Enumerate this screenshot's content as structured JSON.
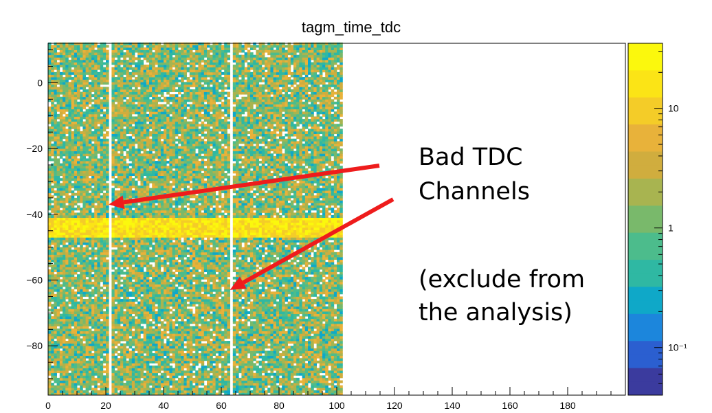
{
  "chart_data": {
    "type": "heatmap",
    "title": "tagm_time_tdc",
    "xlabel": "",
    "ylabel": "",
    "x_range": [
      0,
      200
    ],
    "y_range": [
      -95,
      12
    ],
    "x_ticks": [
      "0",
      "20",
      "40",
      "60",
      "80",
      "100",
      "120",
      "140",
      "160",
      "180"
    ],
    "x_tick_values": [
      0,
      20,
      40,
      60,
      80,
      100,
      120,
      140,
      160,
      180
    ],
    "y_ticks": [
      "0",
      "−20",
      "−40",
      "−60",
      "−80"
    ],
    "y_tick_values": [
      0,
      -20,
      -40,
      -60,
      -80
    ],
    "z_scale": "log",
    "z_range": [
      0.04,
      35
    ],
    "z_ticks": [
      "10",
      "1",
      "10⁻¹"
    ],
    "z_tick_values": [
      10,
      1,
      0.1
    ],
    "filled_x_range": [
      0,
      102
    ],
    "empty_channels": [
      21,
      63
    ],
    "peak_band_y": [
      -47,
      -41
    ],
    "annotations": [
      {
        "lines": [
          "Bad TDC",
          "Channels"
        ],
        "points_to": [
          {
            "x": 21,
            "y": -37
          },
          {
            "x": 63,
            "y": -63
          }
        ]
      },
      {
        "lines": [
          "(exclude from",
          "the analysis)"
        ]
      }
    ],
    "colors": {
      "arrow": "#ee1c1c",
      "palette": [
        "#3b3b9e",
        "#2b5fd0",
        "#1c86dc",
        "#0fa8c8",
        "#2fb8a3",
        "#4cbc8c",
        "#79b96b",
        "#a8b450",
        "#d0ad3e",
        "#e8b23a",
        "#f4cc28",
        "#fbe416",
        "#fbf80d"
      ]
    }
  }
}
